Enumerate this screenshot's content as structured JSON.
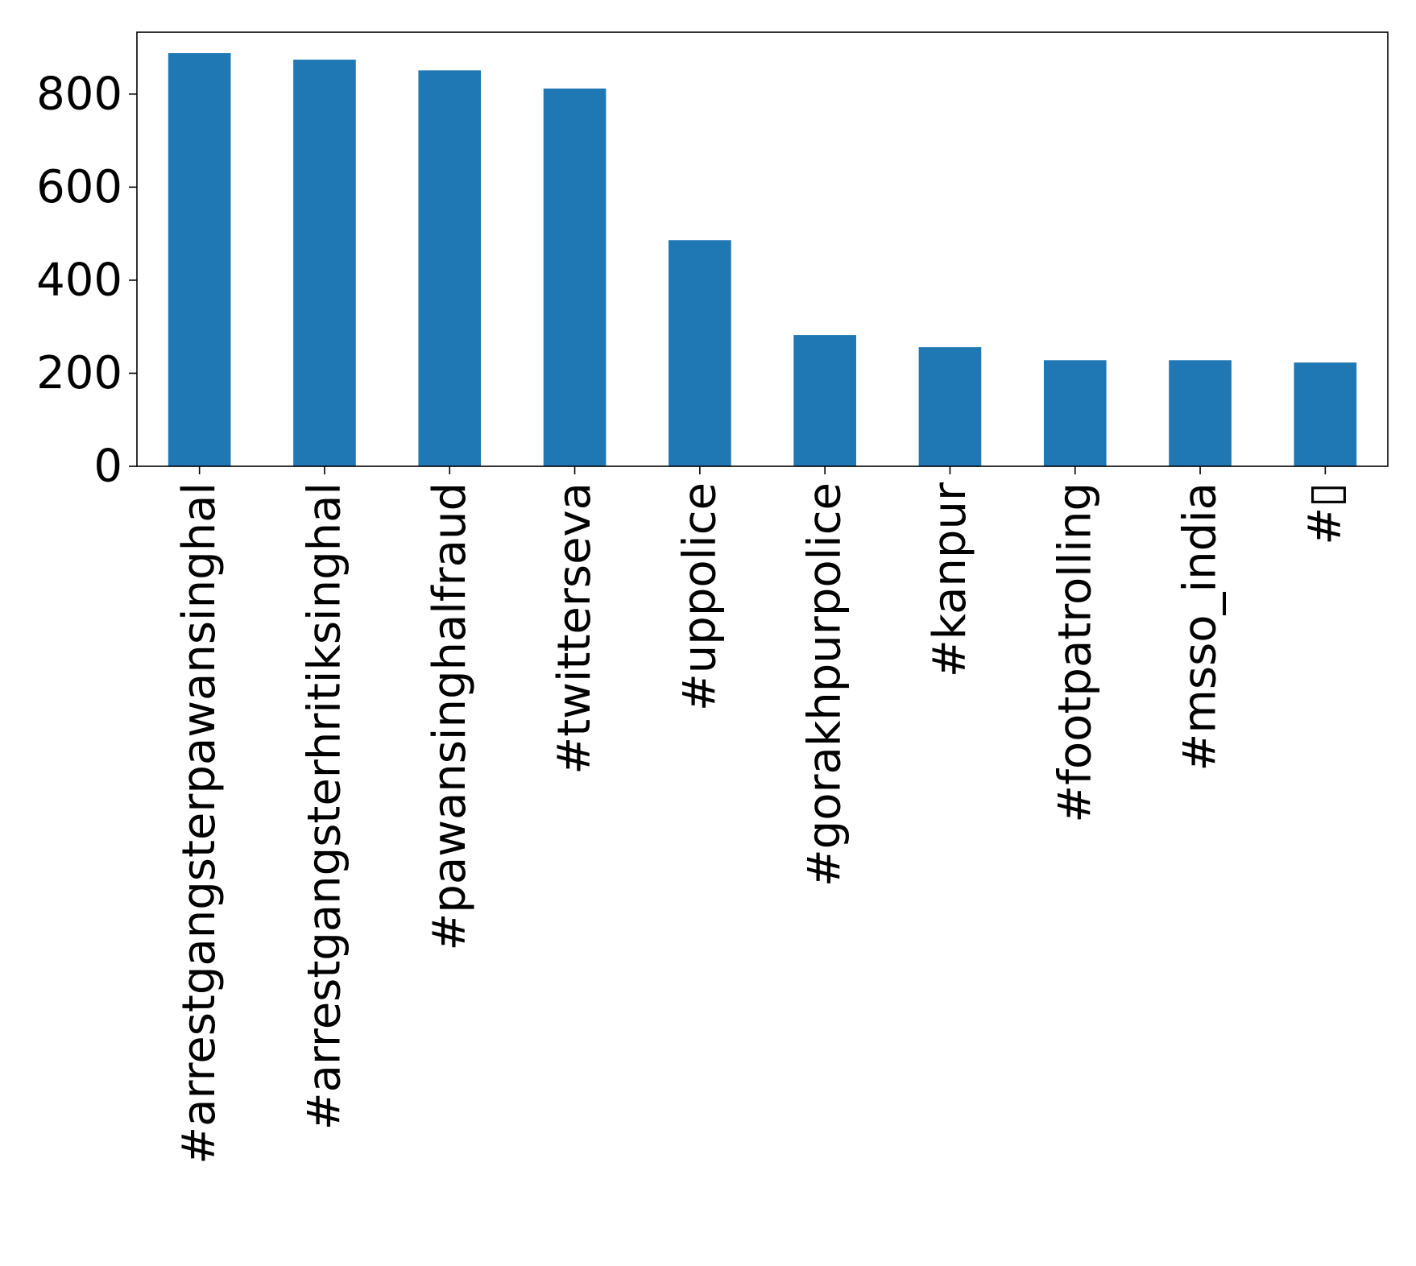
{
  "chart_data": {
    "type": "bar",
    "categories": [
      "#arrestgangsterpawansinghal",
      "#arrestgangsterhritiksinghal",
      "#pawansinghalfraud",
      "#twitterseva",
      "#uppolice",
      "#gorakhpurpolice",
      "#kanpur",
      "#footpatrolling",
      "#msso_india",
      "#▯"
    ],
    "values": [
      888,
      874,
      851,
      812,
      486,
      282,
      256,
      228,
      228,
      223
    ],
    "title": "",
    "xlabel": "",
    "ylabel": "",
    "ylim": [
      0,
      933
    ],
    "yticks": [
      0,
      200,
      400,
      600,
      800
    ],
    "grid": false,
    "legend": "none",
    "bar_color": "#1f77b4"
  }
}
